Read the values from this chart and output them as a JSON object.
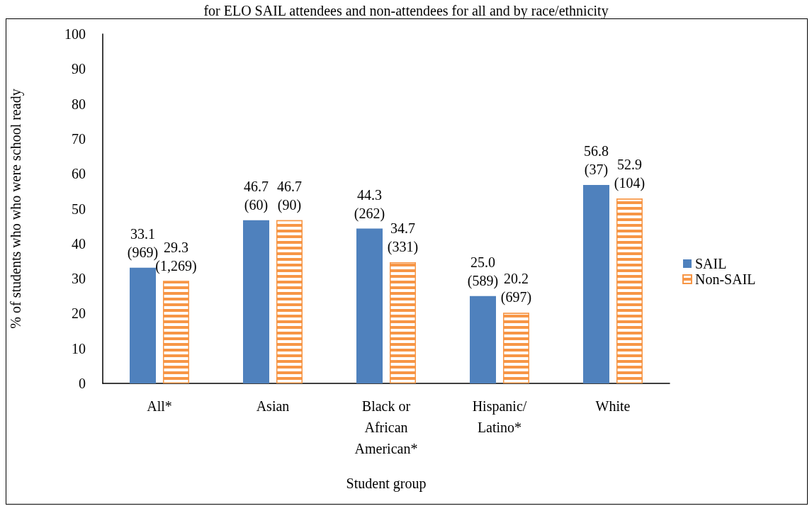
{
  "chart_data": {
    "type": "bar",
    "title": "for ELO SAIL attendees and non-attendees for all and by race/ethnicity",
    "xlabel": "Student group",
    "ylabel": "% of students who who were school ready",
    "categories": [
      "All*",
      "Asian",
      "Black or\nAfrican\nAmerican*",
      "Hispanic/\nLatino*",
      "White"
    ],
    "series": [
      {
        "name": "SAIL",
        "color": "#4f81bd",
        "values": [
          33.1,
          46.7,
          44.3,
          25.0,
          56.8
        ],
        "value_labels": [
          "33.1\n(969)",
          "46.7\n(60)",
          "44.3\n(262)",
          "25.0\n(589)",
          "56.8\n(37)"
        ]
      },
      {
        "name": "Non-SAIL",
        "color": "#f79646",
        "values": [
          29.3,
          46.7,
          34.7,
          20.2,
          52.9
        ],
        "value_labels": [
          "29.3\n(1,269)",
          "46.7\n(90)",
          "34.7\n(331)",
          "20.2\n(697)",
          "52.9\n(104)"
        ]
      }
    ],
    "ylim": [
      0,
      100
    ],
    "yticks": [
      0,
      10,
      20,
      30,
      40,
      50,
      60,
      70,
      80,
      90,
      100
    ],
    "legend": "right"
  }
}
